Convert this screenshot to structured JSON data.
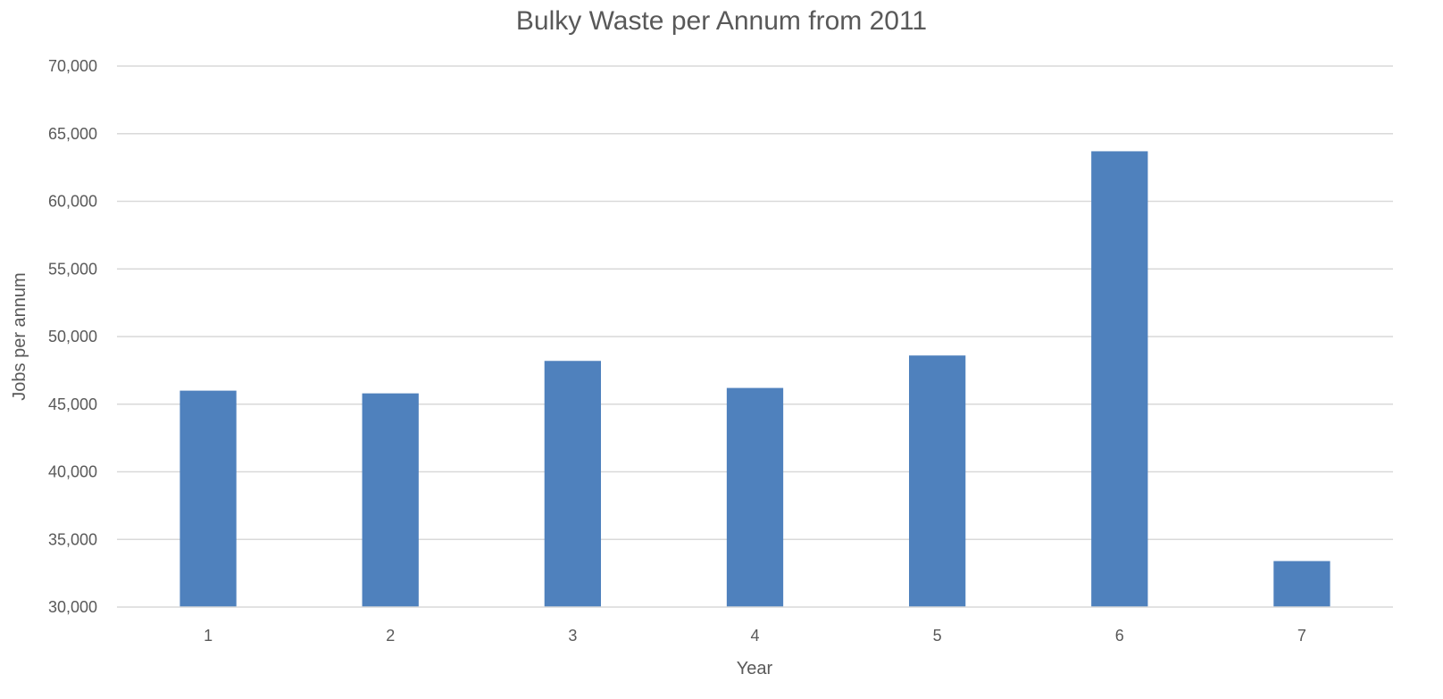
{
  "chart_data": {
    "type": "bar",
    "title": "Bulky Waste per Annum from 2011",
    "xlabel": "Year",
    "ylabel": "Jobs per annum",
    "categories": [
      "1",
      "2",
      "3",
      "4",
      "5",
      "6",
      "7"
    ],
    "values": [
      46000,
      45800,
      48200,
      46200,
      48600,
      63700,
      33400
    ],
    "ylim": [
      30000,
      70000
    ],
    "yticks": [
      30000,
      35000,
      40000,
      45000,
      50000,
      55000,
      60000,
      65000,
      70000
    ],
    "ytick_labels": [
      "30,000",
      "35,000",
      "40,000",
      "45,000",
      "50,000",
      "55,000",
      "60,000",
      "65,000",
      "70,000"
    ],
    "grid": true,
    "legend": "none",
    "colors": {
      "bar": "#4F81BD",
      "grid": "#D9D9D9",
      "text": "#595959"
    }
  }
}
